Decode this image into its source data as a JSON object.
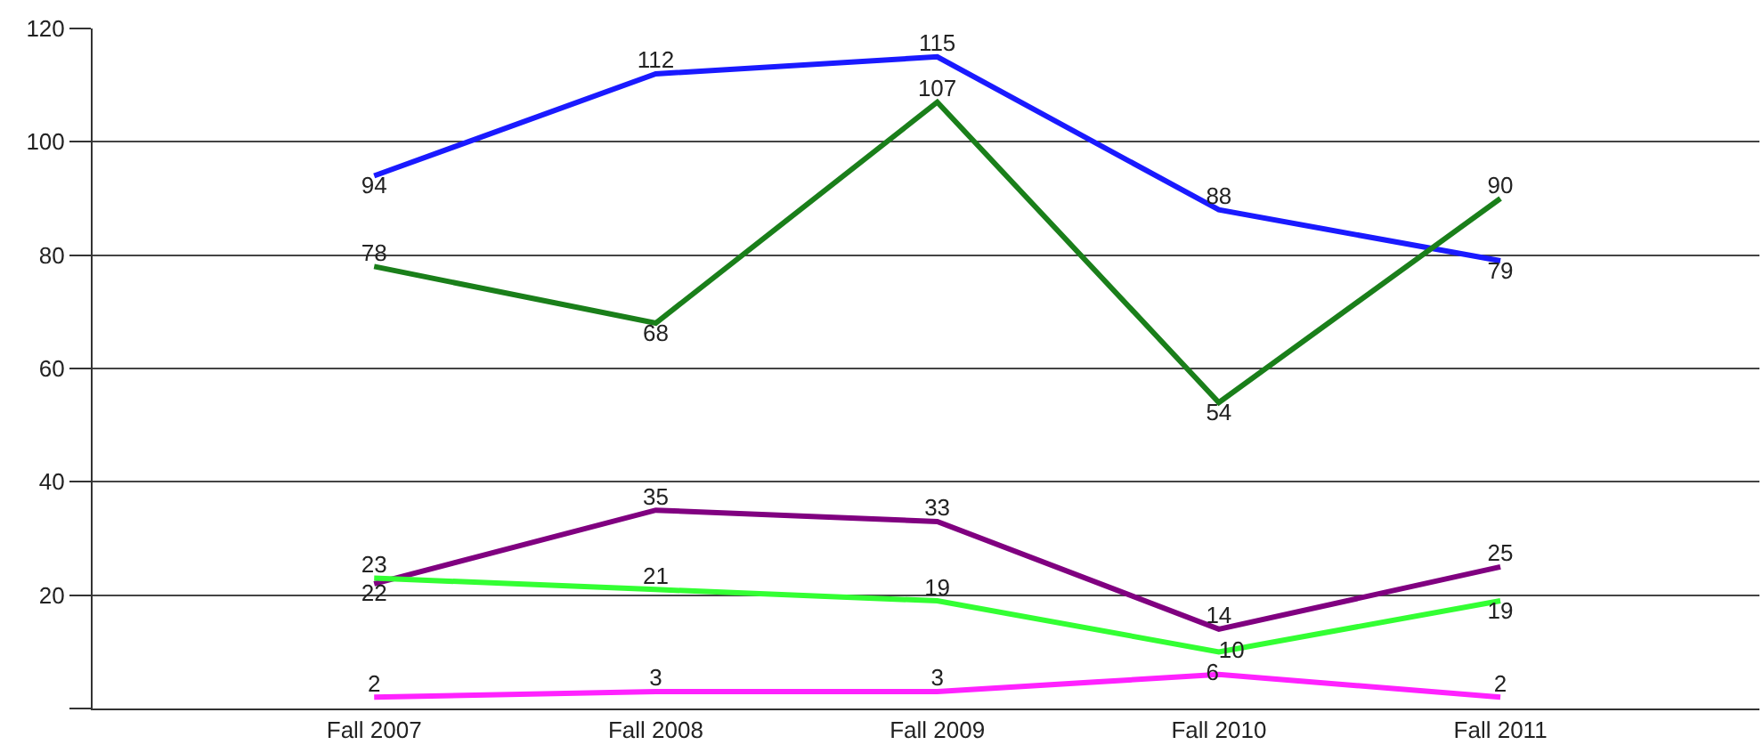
{
  "chart_data": {
    "type": "line",
    "categories": [
      "Fall 2007",
      "Fall 2008",
      "Fall 2009",
      "Fall 2010",
      "Fall 2011"
    ],
    "series": [
      {
        "color": "#1a1aff",
        "values": [
          94,
          112,
          115,
          88,
          79
        ]
      },
      {
        "color": "#1a7f1a",
        "values": [
          78,
          68,
          107,
          54,
          90
        ]
      },
      {
        "color": "#800080",
        "values": [
          22,
          35,
          33,
          14,
          25
        ]
      },
      {
        "color": "#33ff33",
        "values": [
          23,
          21,
          19,
          10,
          19
        ]
      },
      {
        "color": "#ff22ff",
        "values": [
          2,
          3,
          3,
          6,
          2
        ]
      }
    ],
    "ylim": [
      0,
      120
    ],
    "yticks": [
      {
        "value": 0,
        "label": null
      },
      20,
      40,
      60,
      80,
      100,
      120
    ],
    "grid": "y",
    "marker": "none",
    "line_style": "solid",
    "data_labels": true
  }
}
